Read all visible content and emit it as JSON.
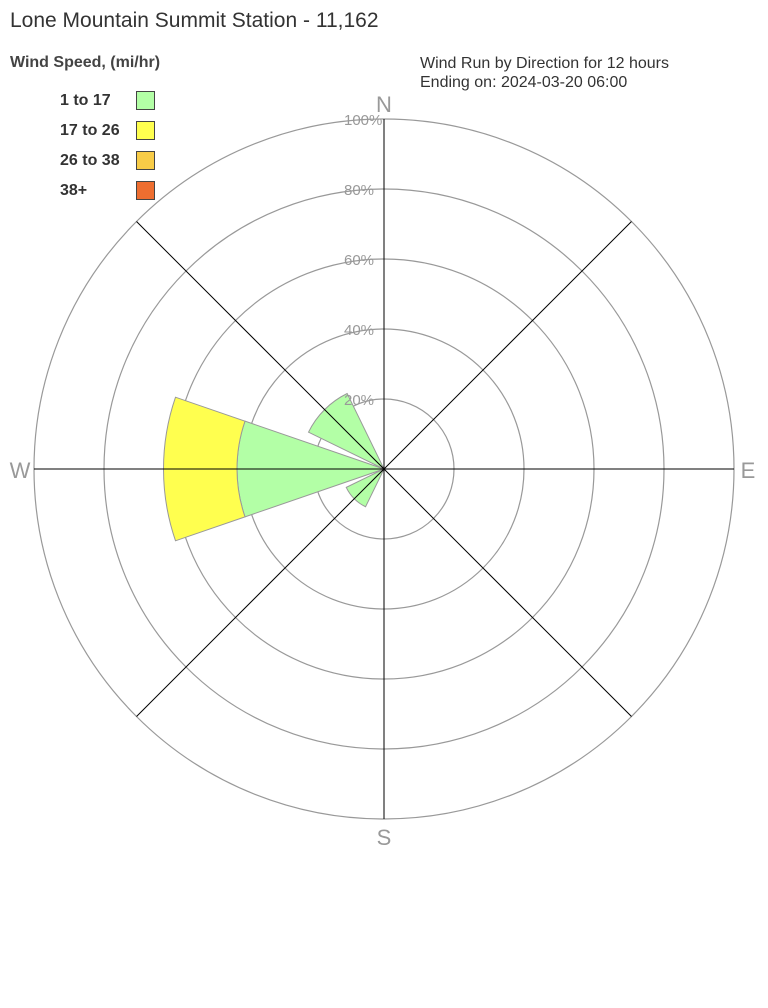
{
  "title": "Lone Mountain Summit Station - 11,162",
  "chart_data": {
    "type": "wind-rose",
    "title": "Lone Mountain Summit Station - 11,162",
    "subtitle_lines": [
      "Wind Run by Direction for 12 hours",
      "Ending on: 2024-03-20 06:00"
    ],
    "legend_title": "Wind Speed, (mi/hr)",
    "legend_placement": "top-left",
    "bins": [
      {
        "label": "1 to 17",
        "color": "#b3ffa6"
      },
      {
        "label": "17 to 26",
        "color": "#ffff4f"
      },
      {
        "label": "26 to 38",
        "color": "#f8cc47"
      },
      {
        "label": "38+",
        "color": "#ee6e30"
      }
    ],
    "compass_labels": [
      "N",
      "E",
      "S",
      "W"
    ],
    "radial_ticks": [
      "20%",
      "40%",
      "60%",
      "80%",
      "100%"
    ],
    "rlim": [
      0,
      100
    ],
    "directions": [
      {
        "dir": "W",
        "deg": 270,
        "values": [
          42,
          21,
          0,
          0
        ]
      },
      {
        "dir": "NW",
        "deg": 315,
        "values": [
          24,
          0,
          0,
          0
        ]
      },
      {
        "dir": "SW",
        "deg": 225,
        "values": [
          12,
          0,
          0,
          0
        ]
      }
    ]
  }
}
